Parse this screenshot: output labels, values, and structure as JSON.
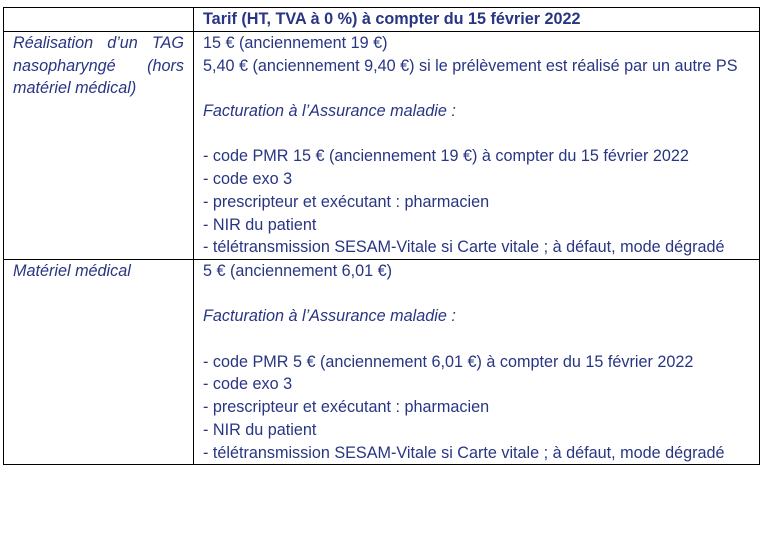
{
  "header": {
    "col1": "",
    "col2": "Tarif (HT, TVA à 0 %) à compter du 15 février 2022"
  },
  "rows": [
    {
      "label": "Réalisation d’un TAG nasopharyngé (hors matériel médical)",
      "price": "15 € (anciennement 19 €)",
      "price2": "5,40 € (anciennement 9,40 €) si le prélèvement est réalisé par un autre PS",
      "billing_title": "Facturation à l’Assurance maladie :",
      "items": [
        "- code PMR 15 € (anciennement 19 €) à compter du 15 février 2022",
        "- code exo 3",
        "- prescripteur et exécutant : pharmacien",
        "- NIR du patient",
        "- télétransmission SESAM-Vitale si Carte vitale ; à défaut, mode dégradé"
      ]
    },
    {
      "label": "Matériel médical",
      "price": "5 € (anciennement 6,01 €)",
      "billing_title": "Facturation à l’Assurance maladie :",
      "items": [
        "- code PMR 5 € (anciennement 6,01 €) à compter du 15 février 2022",
        "- code exo 3",
        "- prescripteur et exécutant : pharmacien",
        "- NIR du patient",
        "- télétransmission SESAM-Vitale si Carte vitale ; à défaut, mode dégradé"
      ]
    }
  ]
}
